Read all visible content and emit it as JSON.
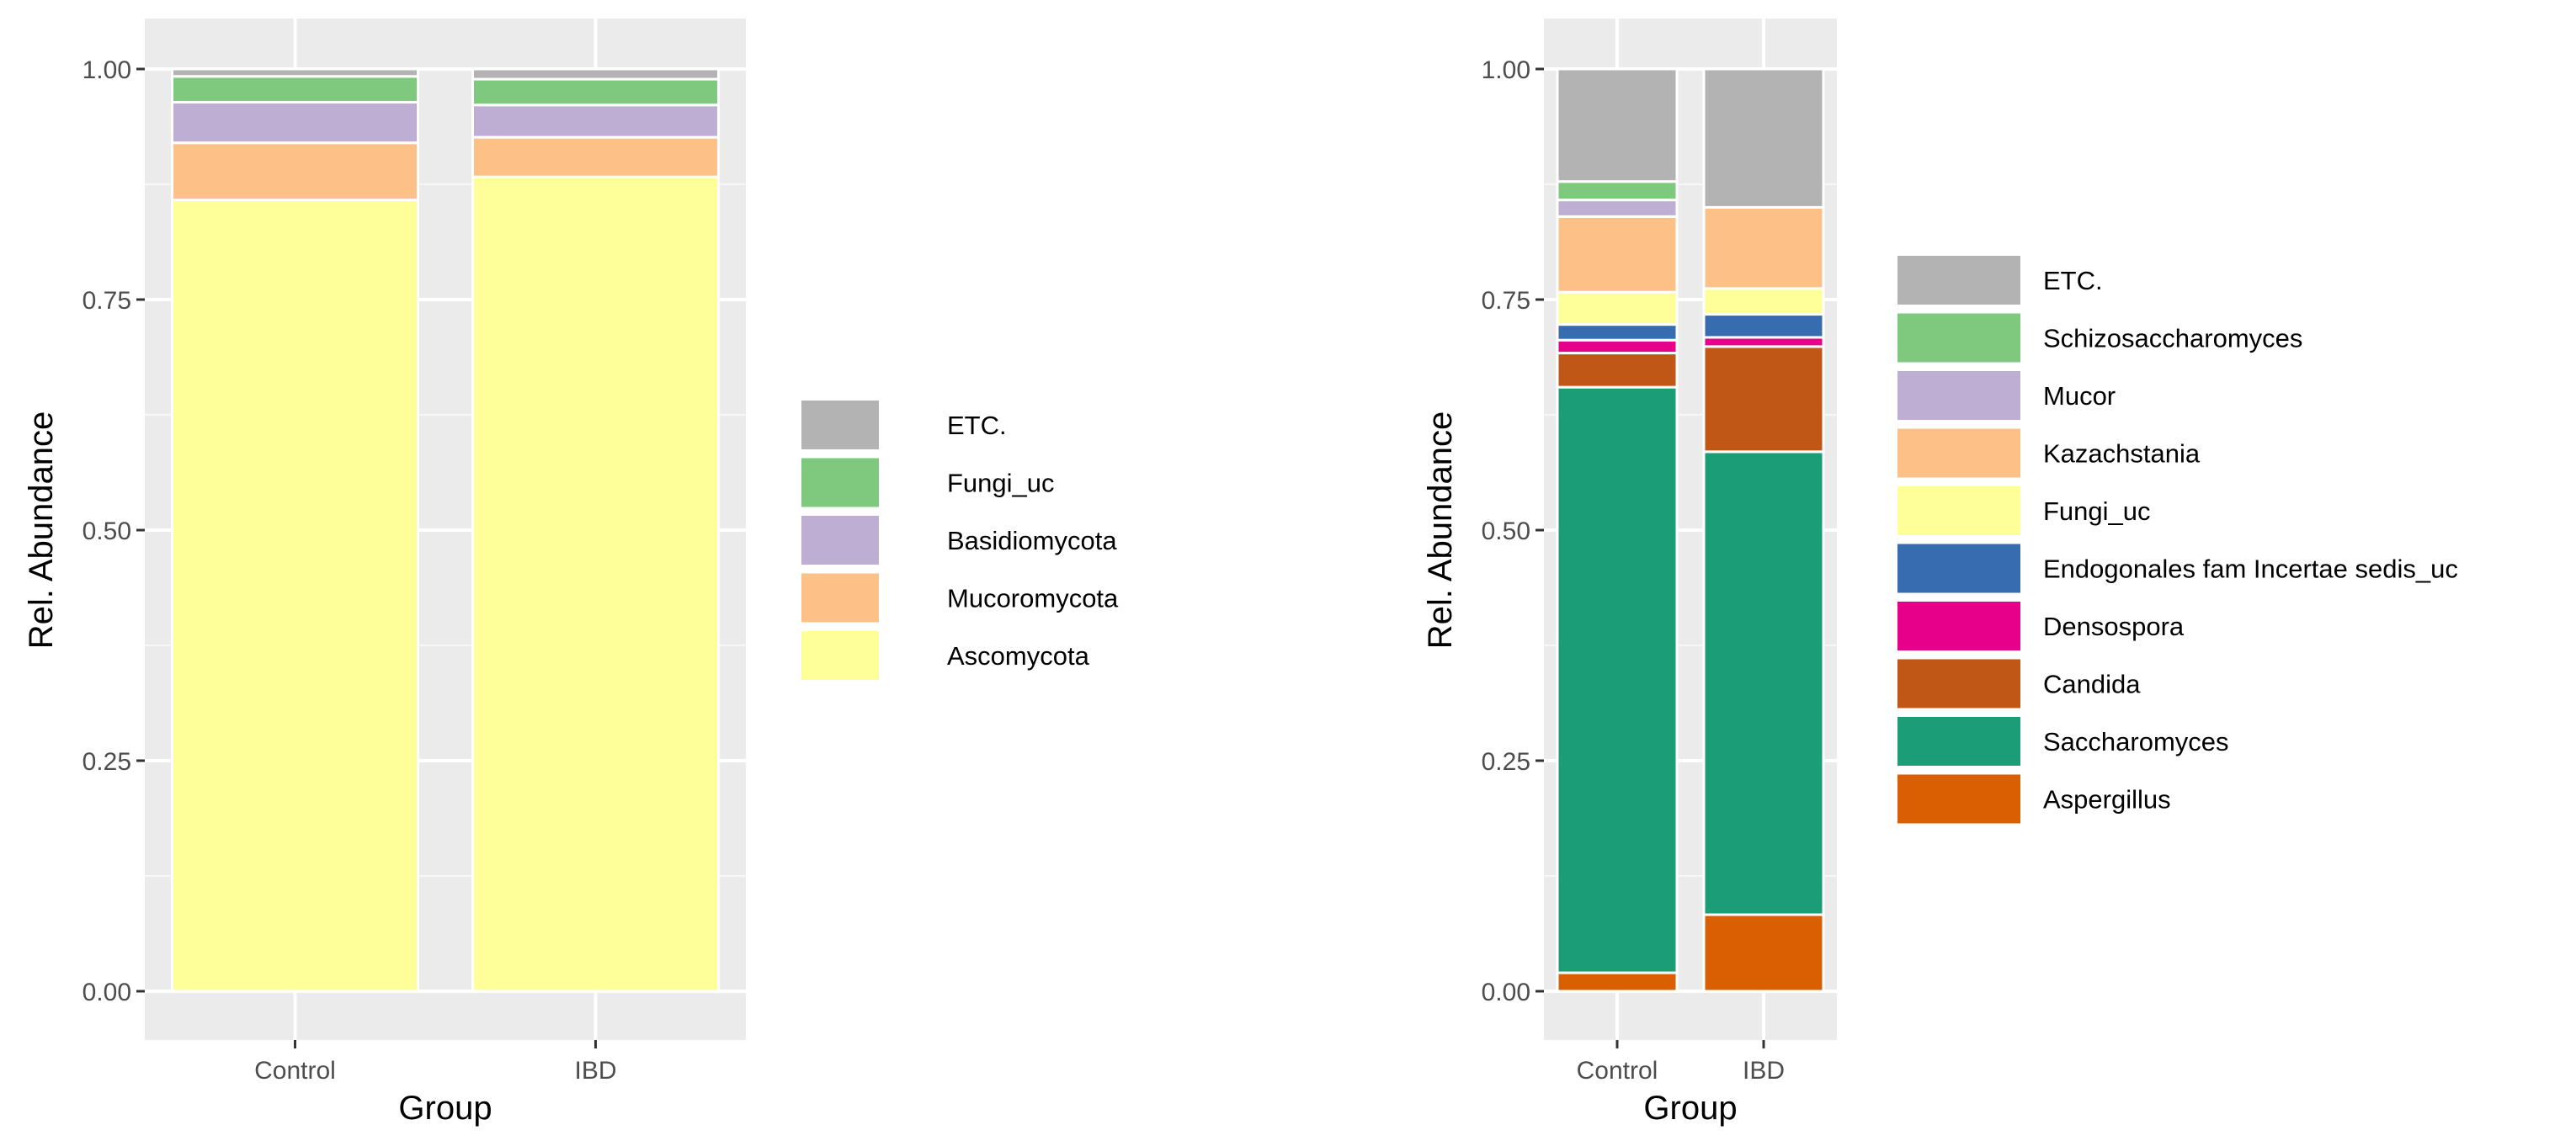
{
  "chart_data": [
    {
      "type": "bar",
      "stacked": true,
      "xlabel": "Group",
      "ylabel": "Rel. Abundance",
      "ylim": [
        0,
        1
      ],
      "yticks": [
        "0.00",
        "0.25",
        "0.50",
        "0.75",
        "1.00"
      ],
      "categories": [
        "Control",
        "IBD"
      ],
      "grid": true,
      "legend_position": "right",
      "legend": [
        "ETC.",
        "Fungi_uc",
        "Basidiomycota",
        "Mucoromycota",
        "Ascomycota"
      ],
      "series": [
        {
          "name": "Ascomycota",
          "color": "#FFFF99",
          "values": [
            0.858,
            0.883
          ]
        },
        {
          "name": "Mucoromycota",
          "color": "#FDC086",
          "values": [
            0.062,
            0.043
          ]
        },
        {
          "name": "Basidiomycota",
          "color": "#BEAED4",
          "values": [
            0.044,
            0.035
          ]
        },
        {
          "name": "Fungi_uc",
          "color": "#7FC97F",
          "values": [
            0.028,
            0.028
          ]
        },
        {
          "name": "ETC.",
          "color": "#B3B3B3",
          "values": [
            0.008,
            0.011
          ]
        }
      ]
    },
    {
      "type": "bar",
      "stacked": true,
      "xlabel": "Group",
      "ylabel": "Rel. Abundance",
      "ylim": [
        0,
        1
      ],
      "yticks": [
        "0.00",
        "0.25",
        "0.50",
        "0.75",
        "1.00"
      ],
      "categories": [
        "Control",
        "IBD"
      ],
      "grid": true,
      "legend_position": "right",
      "legend": [
        "ETC.",
        "Schizosaccharomyces",
        "Mucor",
        "Kazachstania",
        "Fungi_uc",
        "Endogonales fam Incertae sedis_uc",
        "Densospora",
        "Candida",
        "Saccharomyces",
        "Aspergillus"
      ],
      "series": [
        {
          "name": "Aspergillus",
          "color": "#D95F02",
          "values": [
            0.02,
            0.083
          ]
        },
        {
          "name": "Saccharomyces",
          "color": "#1B9E77",
          "values": [
            0.635,
            0.502
          ]
        },
        {
          "name": "Candida",
          "color": "#C05717",
          "values": [
            0.037,
            0.114
          ]
        },
        {
          "name": "Densospora",
          "color": "#E7008A",
          "values": [
            0.014,
            0.01
          ]
        },
        {
          "name": "Endogonales fam Incertae sedis_uc",
          "color": "#386CB0",
          "values": [
            0.017,
            0.025
          ]
        },
        {
          "name": "Fungi_uc",
          "color": "#FFFF99",
          "values": [
            0.035,
            0.028
          ]
        },
        {
          "name": "Kazachstania",
          "color": "#FDC086",
          "values": [
            0.082,
            0.088
          ]
        },
        {
          "name": "Mucor",
          "color": "#BEAED4",
          "values": [
            0.018,
            0.0
          ]
        },
        {
          "name": "Schizosaccharomyces",
          "color": "#7FC97F",
          "values": [
            0.02,
            0.0
          ]
        },
        {
          "name": "ETC.",
          "color": "#B3B3B3",
          "values": [
            0.122,
            0.15
          ]
        }
      ]
    }
  ]
}
